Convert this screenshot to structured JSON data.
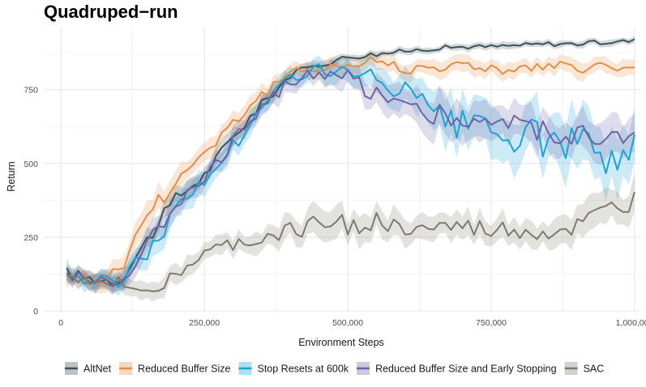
{
  "chart_data": {
    "type": "line",
    "title": "Quadruped−run",
    "xlabel": "Environment Steps",
    "ylabel": "Return",
    "xlim": [
      -30000,
      1010000
    ],
    "ylim": [
      -5,
      960
    ],
    "x_ticks": [
      0,
      250000,
      500000,
      750000,
      1000000
    ],
    "x_tick_labels": [
      "0",
      "250,000",
      "500,000",
      "750,000",
      "1,000,000"
    ],
    "y_ticks": [
      0,
      250,
      500,
      750
    ],
    "y_tick_labels": [
      "0",
      "250",
      "500",
      "750"
    ],
    "grid": true,
    "legend_position": "bottom",
    "series": [
      {
        "name": "AltNet",
        "color": "#3d535c",
        "x": [
          10000,
          50000,
          100000,
          150000,
          200000,
          250000,
          300000,
          350000,
          400000,
          450000,
          500000,
          550000,
          600000,
          650000,
          700000,
          750000,
          800000,
          850000,
          900000,
          950000,
          1000000
        ],
        "y": [
          130,
          110,
          100,
          240,
          380,
          460,
          590,
          700,
          800,
          835,
          860,
          870,
          880,
          890,
          895,
          895,
          900,
          905,
          905,
          910,
          915
        ],
        "band": [
          25,
          25,
          25,
          30,
          30,
          25,
          25,
          20,
          15,
          15,
          12,
          12,
          10,
          10,
          10,
          10,
          10,
          10,
          10,
          10,
          10
        ]
      },
      {
        "name": "Reduced Buffer Size",
        "color": "#e58f45",
        "x": [
          10000,
          50000,
          100000,
          150000,
          200000,
          250000,
          300000,
          350000,
          400000,
          450000,
          500000,
          550000,
          600000,
          650000,
          700000,
          750000,
          800000,
          850000,
          900000,
          950000,
          1000000
        ],
        "y": [
          120,
          100,
          130,
          330,
          440,
          540,
          640,
          730,
          800,
          830,
          830,
          850,
          820,
          830,
          830,
          825,
          815,
          830,
          820,
          830,
          810
        ],
        "band": [
          25,
          30,
          35,
          40,
          35,
          30,
          30,
          25,
          25,
          25,
          25,
          25,
          25,
          25,
          25,
          25,
          25,
          25,
          25,
          25,
          25
        ]
      },
      {
        "name": "Stop Resets at 600k",
        "color": "#1ba3d6",
        "x": [
          10000,
          50000,
          100000,
          150000,
          200000,
          250000,
          300000,
          350000,
          400000,
          450000,
          500000,
          550000,
          600000,
          650000,
          700000,
          750000,
          800000,
          850000,
          900000,
          950000,
          1000000
        ],
        "y": [
          130,
          100,
          100,
          200,
          340,
          440,
          560,
          680,
          800,
          820,
          800,
          780,
          740,
          650,
          620,
          600,
          590,
          580,
          560,
          530,
          550
        ],
        "band": [
          25,
          25,
          30,
          40,
          40,
          35,
          35,
          30,
          30,
          30,
          40,
          50,
          60,
          70,
          75,
          80,
          80,
          80,
          80,
          80,
          80
        ]
      },
      {
        "name": "Reduced Buffer Size and Early Stopping",
        "color": "#6d64a3",
        "x": [
          10000,
          50000,
          100000,
          150000,
          200000,
          250000,
          300000,
          350000,
          400000,
          450000,
          500000,
          550000,
          600000,
          650000,
          700000,
          750000,
          800000,
          850000,
          900000,
          950000,
          1000000
        ],
        "y": [
          125,
          105,
          100,
          220,
          370,
          460,
          570,
          700,
          780,
          800,
          790,
          740,
          700,
          670,
          650,
          640,
          630,
          610,
          600,
          590,
          570
        ],
        "band": [
          25,
          25,
          30,
          35,
          35,
          30,
          30,
          30,
          30,
          30,
          40,
          45,
          50,
          55,
          55,
          55,
          55,
          55,
          55,
          55,
          55
        ]
      },
      {
        "name": "SAC",
        "color": "#7d7a6e",
        "x": [
          10000,
          50000,
          100000,
          150000,
          200000,
          250000,
          300000,
          350000,
          400000,
          450000,
          500000,
          550000,
          600000,
          650000,
          700000,
          750000,
          800000,
          850000,
          900000,
          950000,
          1000000
        ],
        "y": [
          110,
          100,
          100,
          70,
          120,
          190,
          225,
          240,
          270,
          300,
          290,
          300,
          270,
          280,
          280,
          270,
          270,
          260,
          280,
          330,
          370
        ],
        "band": [
          20,
          20,
          25,
          30,
          30,
          30,
          30,
          35,
          40,
          45,
          45,
          45,
          40,
          40,
          40,
          40,
          40,
          40,
          45,
          50,
          50
        ]
      }
    ]
  }
}
